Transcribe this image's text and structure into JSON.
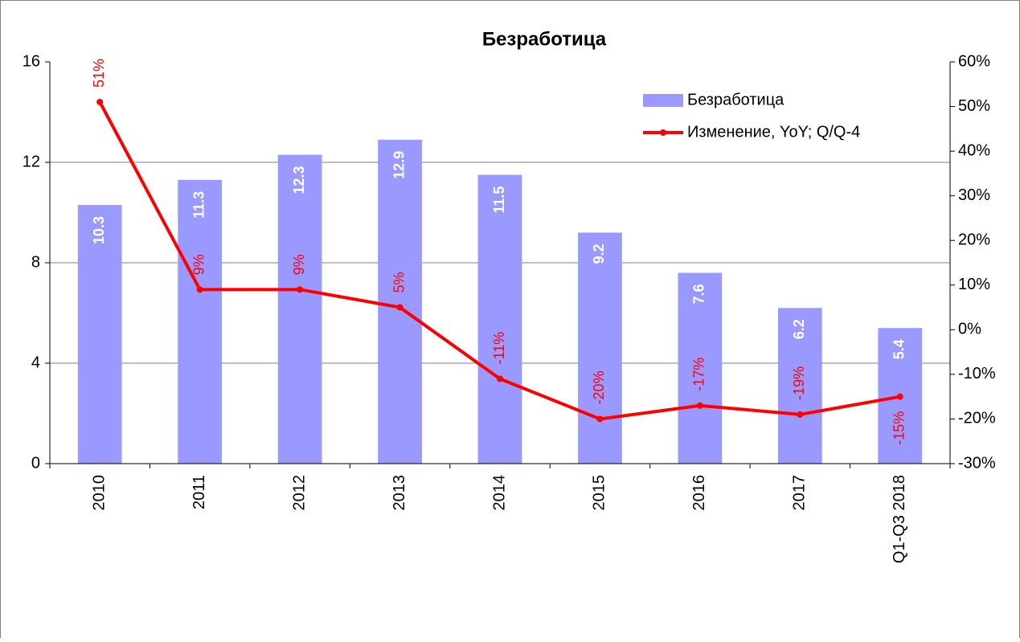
{
  "chart_data": {
    "type": "bar_line",
    "title": "Безработица",
    "categories": [
      "2010",
      "2011",
      "2012",
      "2013",
      "2014",
      "2015",
      "2016",
      "2017",
      "Q1-Q3 2018"
    ],
    "series": [
      {
        "name": "Безработица",
        "color": "#9999ff",
        "type": "bar",
        "values": [
          10.3,
          11.3,
          12.3,
          12.9,
          11.5,
          9.2,
          7.6,
          6.2,
          5.4
        ]
      },
      {
        "name": "Изменение, YoY; Q/Q-4",
        "color": "#ff0000",
        "type": "line",
        "axis": "y2",
        "values": [
          51,
          9,
          9,
          5,
          -11,
          -20,
          -17,
          -19,
          -15
        ],
        "value_labels": [
          "51%",
          "9%",
          "9%",
          "5%",
          "-11%",
          "-20%",
          "-17%",
          "-19%",
          "-15%"
        ]
      }
    ],
    "ylim": [
      0,
      16
    ],
    "yticks": [
      0,
      4,
      8,
      12,
      16
    ],
    "y2lim": [
      -30,
      60
    ],
    "y2ticks": [
      {
        "value": -30,
        "label": "-30%"
      },
      {
        "value": -20,
        "label": "-20%"
      },
      {
        "value": -10,
        "label": "-10%"
      },
      {
        "value": 0,
        "label": "0%"
      },
      {
        "value": 10,
        "label": "10%"
      },
      {
        "value": 20,
        "label": "20%"
      },
      {
        "value": 30,
        "label": "30%"
      },
      {
        "value": 40,
        "label": "40%"
      },
      {
        "value": 50,
        "label": "50%"
      },
      {
        "value": 60,
        "label": "60%"
      }
    ],
    "grid": true,
    "legend": "upper right"
  }
}
